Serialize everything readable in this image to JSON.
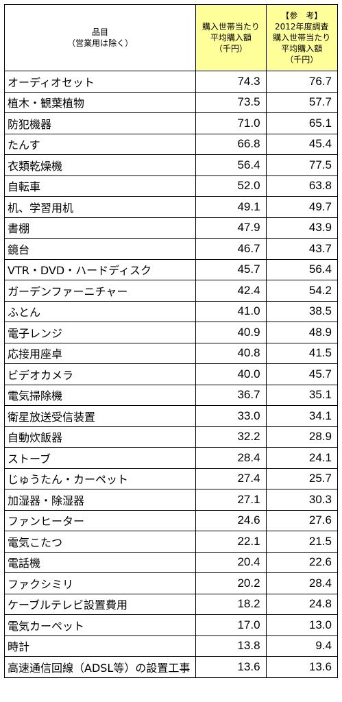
{
  "header": {
    "item_line1": "品目",
    "item_line2": "（営業用は除く）",
    "colA_line1": "購入世帯当たり",
    "colA_line2": "平均購入額",
    "colA_line3": "（千円）",
    "colB_line1": "【参　考】",
    "colB_line2": "2012年度調査",
    "colB_line3": "購入世帯当たり",
    "colB_line4": "平均購入額",
    "colB_line5": "（千円）"
  },
  "rows": [
    {
      "name": "オーディオセット",
      "a": "74.3",
      "b": "76.7"
    },
    {
      "name": "植木・観葉植物",
      "a": "73.5",
      "b": "57.7"
    },
    {
      "name": "防犯機器",
      "a": "71.0",
      "b": "65.1"
    },
    {
      "name": "たんす",
      "a": "66.8",
      "b": "45.4"
    },
    {
      "name": "衣類乾燥機",
      "a": "56.4",
      "b": "77.5"
    },
    {
      "name": "自転車",
      "a": "52.0",
      "b": "63.8"
    },
    {
      "name": "机、学習用机",
      "a": "49.1",
      "b": "49.7"
    },
    {
      "name": "書棚",
      "a": "47.9",
      "b": "43.9"
    },
    {
      "name": "鏡台",
      "a": "46.7",
      "b": "43.7"
    },
    {
      "name": "VTR・DVD・ハードディスク",
      "a": "45.7",
      "b": "56.4"
    },
    {
      "name": "ガーデンファーニチャー",
      "a": "42.4",
      "b": "54.2"
    },
    {
      "name": "ふとん",
      "a": "41.0",
      "b": "38.5"
    },
    {
      "name": "電子レンジ",
      "a": "40.9",
      "b": "48.9"
    },
    {
      "name": "応接用座卓",
      "a": "40.8",
      "b": "41.5"
    },
    {
      "name": "ビデオカメラ",
      "a": "40.0",
      "b": "45.7"
    },
    {
      "name": "電気掃除機",
      "a": "36.7",
      "b": "35.1"
    },
    {
      "name": "衛星放送受信装置",
      "a": "33.0",
      "b": "34.1"
    },
    {
      "name": "自動炊飯器",
      "a": "32.2",
      "b": "28.9"
    },
    {
      "name": "ストーブ",
      "a": "28.4",
      "b": "24.1"
    },
    {
      "name": "じゅうたん・カーペット",
      "a": "27.4",
      "b": "25.7"
    },
    {
      "name": "加湿器・除湿器",
      "a": "27.1",
      "b": "30.3"
    },
    {
      "name": "ファンヒーター",
      "a": "24.6",
      "b": "27.6"
    },
    {
      "name": "電気こたつ",
      "a": "22.1",
      "b": "21.5"
    },
    {
      "name": "電話機",
      "a": "20.4",
      "b": "22.6"
    },
    {
      "name": "ファクシミリ",
      "a": "20.2",
      "b": "28.4"
    },
    {
      "name": "ケーブルテレビ設置費用",
      "a": "18.2",
      "b": "24.8"
    },
    {
      "name": "電気カーペット",
      "a": "17.0",
      "b": "13.0"
    },
    {
      "name": "時計",
      "a": "13.8",
      "b": "9.4"
    },
    {
      "name": "高速通信回線（ADSL等）の設置工事",
      "a": "13.6",
      "b": "13.6"
    }
  ],
  "colors": {
    "header_highlight": "#ffff99",
    "border": "#000000"
  }
}
